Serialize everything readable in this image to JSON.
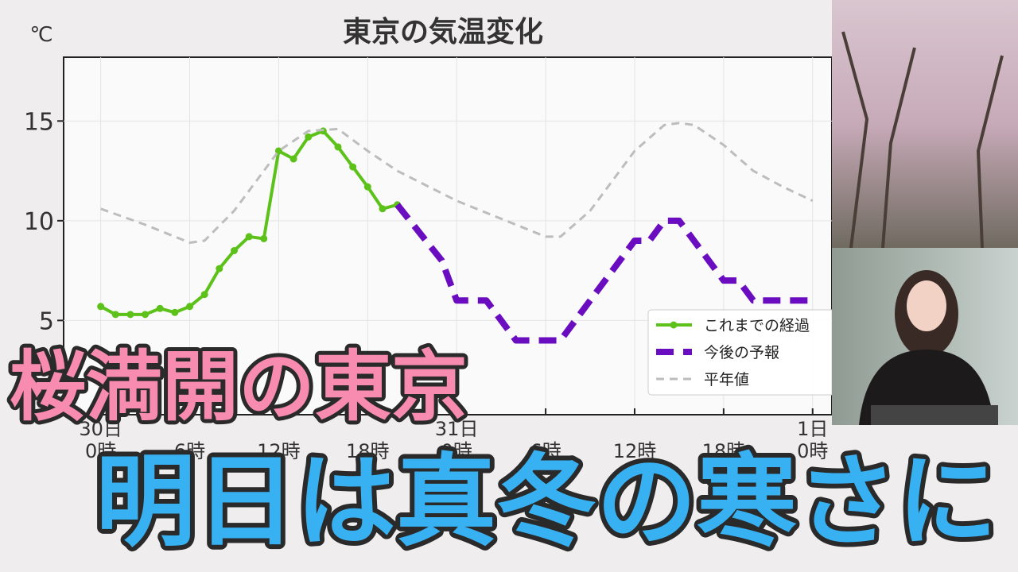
{
  "chart_data": {
    "type": "line",
    "title": "東京の気温変化",
    "y_label": "℃",
    "xlim": [
      -2.5,
      49.3
    ],
    "ylim": [
      0.6,
      18.2
    ],
    "yticks": [
      5,
      10,
      15
    ],
    "xticks": [
      {
        "value": 0,
        "label": "30日 0時"
      },
      {
        "value": 6,
        "label": "6時"
      },
      {
        "value": 12,
        "label": "12時"
      },
      {
        "value": 18,
        "label": "18時"
      },
      {
        "value": 24,
        "label": "31日 0時"
      },
      {
        "value": 30,
        "label": "6時"
      },
      {
        "value": 36,
        "label": "12時"
      },
      {
        "value": 42,
        "label": "18時"
      },
      {
        "value": 48,
        "label": "1日 0時"
      }
    ],
    "grid": true,
    "legend": "lower right",
    "series": [
      {
        "name": "これまでの経過",
        "color": "#5cc21a",
        "linestyle": "solid",
        "marker": true,
        "x": [
          0,
          1,
          2,
          3,
          4,
          5,
          6,
          7,
          8,
          9,
          10,
          11,
          12,
          13,
          14,
          15,
          16,
          17,
          18,
          19,
          20
        ],
        "values": [
          5.7,
          5.3,
          5.3,
          5.3,
          5.6,
          5.4,
          5.7,
          6.3,
          7.6,
          8.5,
          9.2,
          9.1,
          13.5,
          13.1,
          14.2,
          14.5,
          13.7,
          12.7,
          11.7,
          10.6,
          10.8
        ]
      },
      {
        "name": "今後の予報",
        "color": "#6a0dc0",
        "linestyle": "dashed-thick",
        "marker": false,
        "x": [
          20,
          23,
          24,
          26,
          28,
          31,
          36,
          37,
          38,
          39,
          42,
          43,
          44,
          48
        ],
        "values": [
          10.8,
          8.0,
          6,
          6,
          4,
          4,
          9,
          9,
          10,
          10,
          7,
          7,
          6,
          6
        ]
      },
      {
        "name": "平年値",
        "color": "#bdbdbd",
        "linestyle": "dashed",
        "marker": false,
        "x": [
          0,
          3,
          6,
          7,
          9,
          12,
          14,
          16,
          18,
          20,
          24,
          28,
          30,
          31,
          33,
          36,
          38,
          39,
          40,
          42,
          44,
          46,
          48
        ],
        "values": [
          10.6,
          9.8,
          8.9,
          9.0,
          10.5,
          13.5,
          14.5,
          14.6,
          13.5,
          12.5,
          11.0,
          9.8,
          9.2,
          9.2,
          10.5,
          13.5,
          14.8,
          14.9,
          14.8,
          13.8,
          12.5,
          11.7,
          11.0
        ]
      }
    ]
  },
  "overlay": {
    "headline": "桜満開の東京",
    "subheadline": "明日は真冬の寒さに"
  }
}
